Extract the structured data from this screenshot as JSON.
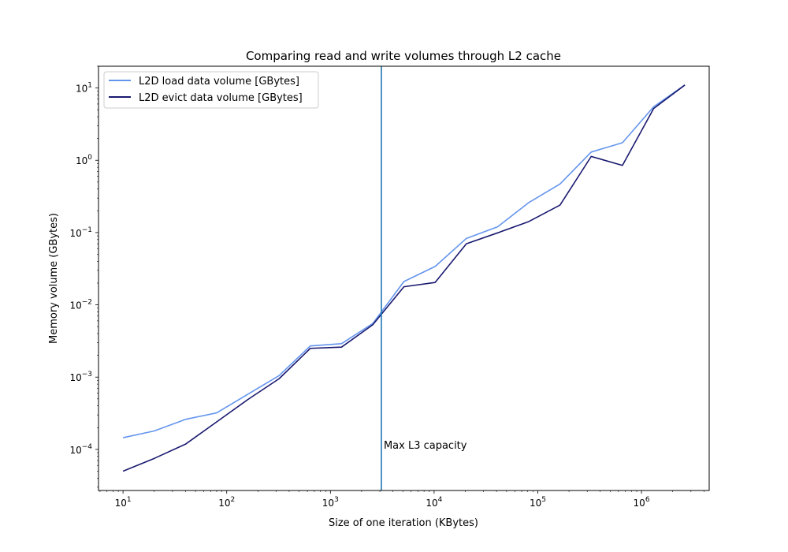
{
  "chart_data": {
    "type": "line",
    "title": "Comparing read and write volumes through L2 cache",
    "xlabel": "Size of one iteration (KBytes)",
    "ylabel": "Memory volume (GBytes)",
    "xscale": "log",
    "yscale": "log",
    "xlim": [
      5.8,
      4500000
    ],
    "ylim": [
      2.7e-05,
      20
    ],
    "grid": false,
    "legend_position": "top-left",
    "x": [
      10,
      20,
      40,
      80,
      160,
      320,
      640,
      1280,
      2560,
      5120,
      10240,
      20480,
      40960,
      81920,
      163840,
      327680,
      655360,
      1310720,
      2621440
    ],
    "series": [
      {
        "name": "L2D load data volume [GBytes]",
        "color": "#6495ED",
        "values": [
          0.000145,
          0.00018,
          0.00026,
          0.00032,
          0.00058,
          0.00105,
          0.0027,
          0.0029,
          0.0055,
          0.021,
          0.034,
          0.083,
          0.12,
          0.26,
          0.47,
          1.3,
          1.75,
          5.5,
          11
        ]
      },
      {
        "name": "L2D evict data volume [GBytes]",
        "color": "#191970",
        "values": [
          5e-05,
          7.5e-05,
          0.000118,
          0.00024,
          0.00049,
          0.00095,
          0.0025,
          0.0026,
          0.0053,
          0.0178,
          0.0204,
          0.07,
          0.099,
          0.142,
          0.24,
          1.13,
          0.85,
          5.2,
          11
        ]
      }
    ],
    "vline": {
      "x": 3100,
      "color": "#1f77b4",
      "label": "Max L3 capacity"
    },
    "xticks": [
      {
        "value": 10,
        "base": "10",
        "exp": "1"
      },
      {
        "value": 100,
        "base": "10",
        "exp": "2"
      },
      {
        "value": 1000,
        "base": "10",
        "exp": "3"
      },
      {
        "value": 10000,
        "base": "10",
        "exp": "4"
      },
      {
        "value": 100000,
        "base": "10",
        "exp": "5"
      },
      {
        "value": 1000000,
        "base": "10",
        "exp": "6"
      }
    ],
    "yticks": [
      {
        "value": 0.0001,
        "base": "10",
        "exp": "−4"
      },
      {
        "value": 0.001,
        "base": "10",
        "exp": "−3"
      },
      {
        "value": 0.01,
        "base": "10",
        "exp": "−2"
      },
      {
        "value": 0.1,
        "base": "10",
        "exp": "−1"
      },
      {
        "value": 1,
        "base": "10",
        "exp": "0"
      },
      {
        "value": 10,
        "base": "10",
        "exp": "1"
      }
    ]
  }
}
